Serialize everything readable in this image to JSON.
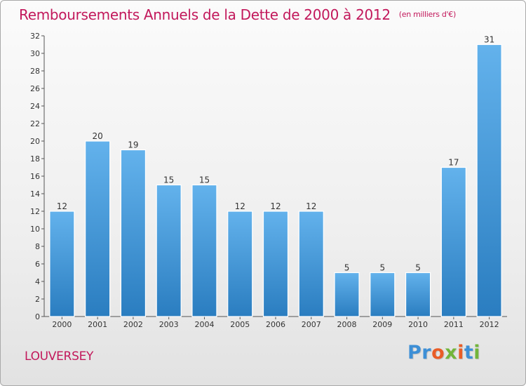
{
  "header": {
    "title": "Remboursements Annuels de la Dette de 2000 à 2012",
    "unit": "(en milliers d'€)"
  },
  "footer": {
    "commune": "LOUVERSEY",
    "logo_letters": [
      "P",
      "r",
      "o",
      "x",
      "i",
      "t",
      "i"
    ]
  },
  "colors": {
    "title": "#c2185b",
    "bar_light": "#63b2ec",
    "bar_dark": "#2a7dc0",
    "logo": [
      "#3d8fd6",
      "#3d8fd6",
      "#e95d27",
      "#72b53a",
      "#e95d27",
      "#3d8fd6",
      "#72b53a"
    ]
  },
  "chart_data": {
    "type": "bar",
    "categories": [
      "2000",
      "2001",
      "2002",
      "2003",
      "2004",
      "2005",
      "2006",
      "2007",
      "2008",
      "2009",
      "2010",
      "2011",
      "2012"
    ],
    "values": [
      12,
      20,
      19,
      15,
      15,
      12,
      12,
      12,
      5,
      5,
      5,
      17,
      31
    ],
    "ylim": [
      0,
      32
    ],
    "yticks": [
      0,
      2,
      4,
      6,
      8,
      10,
      12,
      14,
      16,
      18,
      20,
      22,
      24,
      26,
      28,
      30,
      32
    ],
    "grid": false,
    "data_labels": true
  }
}
